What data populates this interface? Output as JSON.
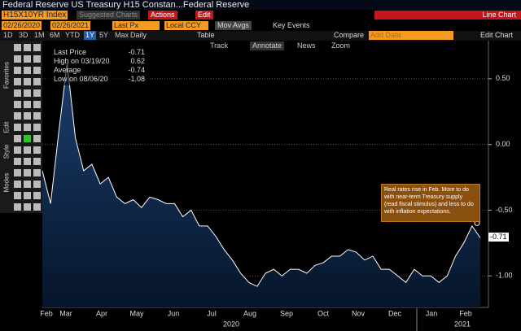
{
  "ui": {
    "title": "Federal Reserve US Treasury H15 Constan...Federal Reserve",
    "ticker": "H15X10YR Index",
    "suggested": "Suggested Charts",
    "actions": "Actions",
    "edit": "Edit",
    "chart_type": "Line Chart",
    "start_date": "02/26/2020",
    "end_date": "02/26/2021",
    "price_field": "Last Px",
    "currency": "Local CCY",
    "mov_avgs": "Mov Avgs",
    "key_events": "Key Events",
    "periods": [
      "1D",
      "3D",
      "1M",
      "6M",
      "YTD",
      "1Y",
      "5Y",
      "Max",
      "Daily"
    ],
    "table": "Table",
    "compare": "Compare",
    "add_data": "Add Data",
    "edit_chart": "Edit Chart",
    "tools": [
      "Track",
      "Annotate",
      "News",
      "Zoom"
    ],
    "side_tabs": [
      "Favorites",
      "Edit",
      "Style",
      "Modes"
    ]
  },
  "chart_data": {
    "type": "area",
    "color": "#ffffff",
    "fill": "#0d2a4d",
    "values": [
      -0.2,
      -0.45,
      0.1,
      0.62,
      0.05,
      -0.2,
      -0.15,
      -0.3,
      -0.25,
      -0.4,
      -0.45,
      -0.42,
      -0.48,
      -0.4,
      -0.42,
      -0.45,
      -0.45,
      -0.55,
      -0.5,
      -0.62,
      -0.62,
      -0.7,
      -0.8,
      -0.88,
      -0.98,
      -1.05,
      -1.08,
      -0.98,
      -0.95,
      -1.0,
      -0.95,
      -0.95,
      -0.98,
      -0.92,
      -0.9,
      -0.85,
      -0.85,
      -0.8,
      -0.82,
      -0.88,
      -0.85,
      -0.95,
      -0.95,
      -1.0,
      -1.05,
      -0.95,
      -1.0,
      -1.0,
      -1.05,
      -1.0,
      -0.85,
      -0.75,
      -0.62,
      -0.71
    ],
    "ylim": [
      -1.24,
      0.79
    ],
    "yticks": [
      {
        "value": 0.5,
        "label": "0.50"
      },
      {
        "value": 0,
        "label": "0.00"
      },
      {
        "value": -0.5,
        "label": "-0.50"
      },
      {
        "value": -1,
        "label": "-1.00"
      }
    ],
    "grid": true,
    "xtick_labels": [
      "Feb",
      "Mar",
      "Apr",
      "May",
      "Jun",
      "Jul",
      "Aug",
      "Sep",
      "Oct",
      "Nov",
      "Dec",
      "Jan",
      "Feb"
    ],
    "year_labels": [
      "2020",
      "2021"
    ],
    "stats": [
      {
        "label": "Last Price",
        "value": -0.71
      },
      {
        "label": "High on 03/19/20",
        "value": 0.62
      },
      {
        "label": "Average",
        "value": -0.74
      },
      {
        "label": "Low on 08/06/20",
        "value": -1.08
      }
    ],
    "annotation": "Real rates rise in Feb.  More to do with near-term Treasury supply (read fiscal stimulus) and less to do with inflation expectations."
  }
}
